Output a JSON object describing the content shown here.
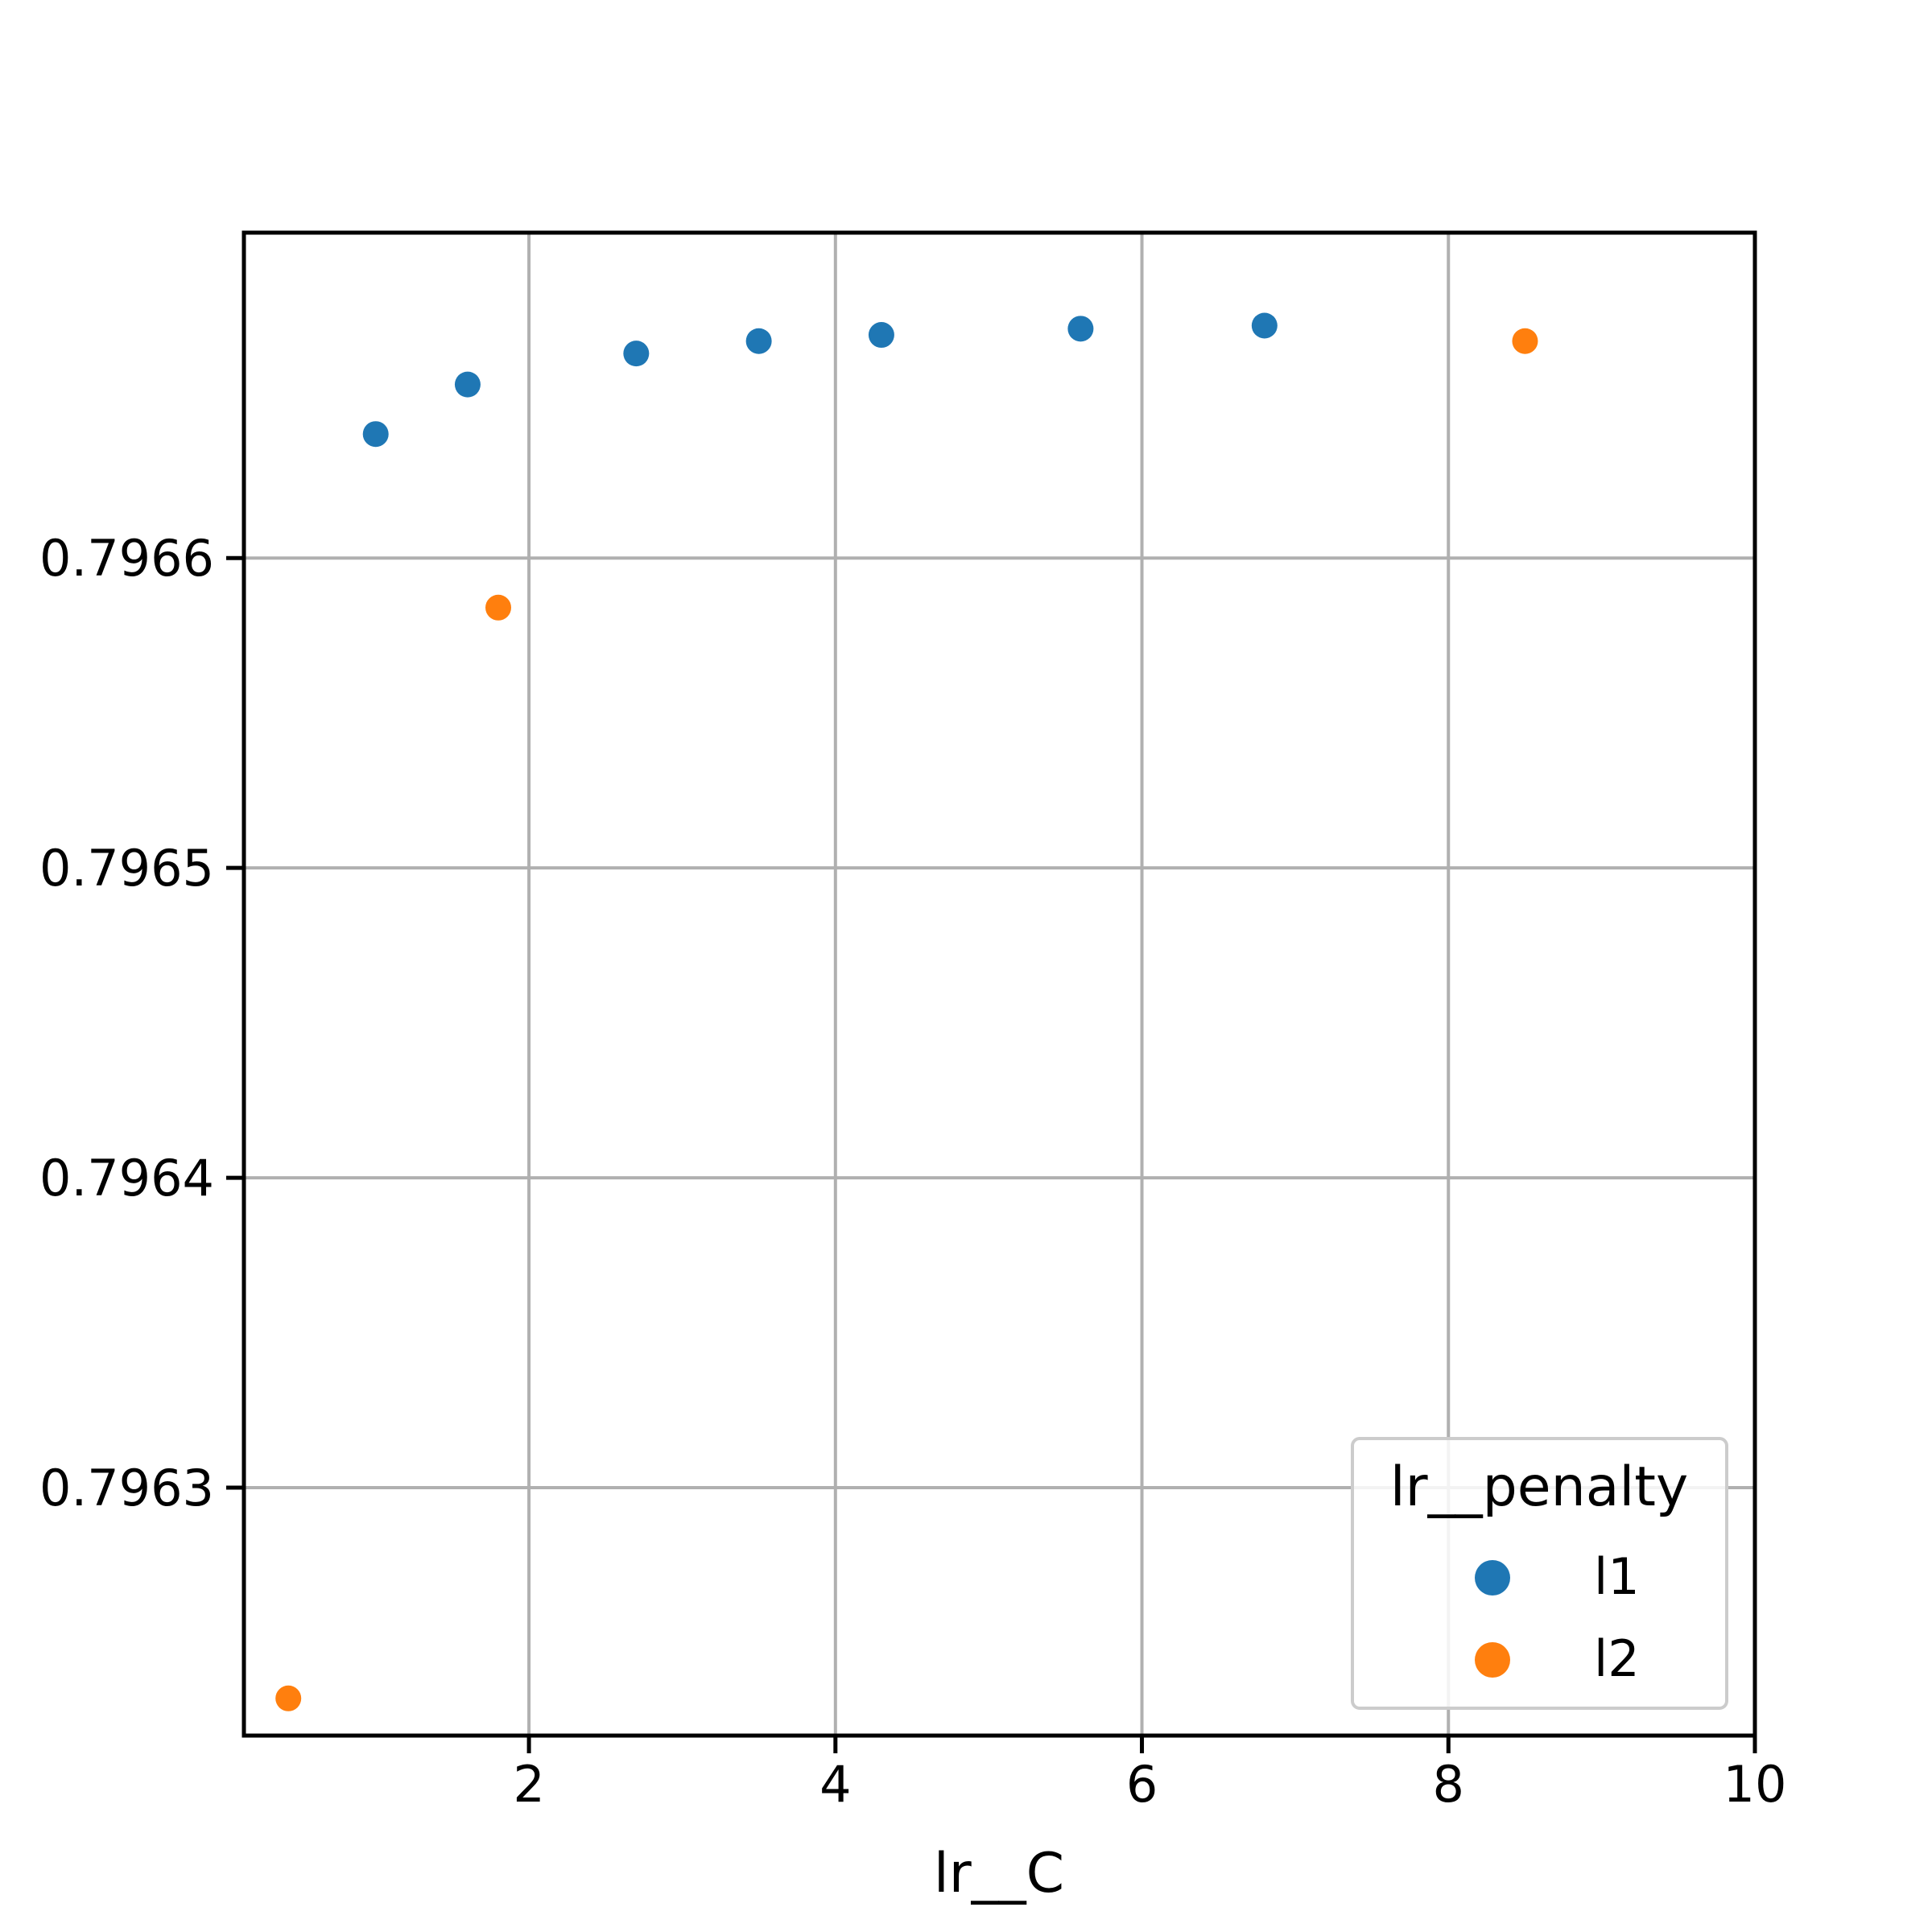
{
  "chart_data": {
    "type": "scatter",
    "title": "",
    "xlabel": "lr__C",
    "ylabel": "",
    "xlim": [
      0.14,
      10.0
    ],
    "ylim": [
      0.79622,
      0.796705
    ],
    "x_ticks": [
      2,
      4,
      6,
      8,
      10
    ],
    "y_ticks": [
      0.7963,
      0.7964,
      0.7965,
      0.7966
    ],
    "x_tick_labels": [
      "2",
      "4",
      "6",
      "8",
      "10"
    ],
    "y_tick_labels": [
      "0.7963",
      "0.7964",
      "0.7965",
      "0.7966"
    ],
    "grid": true,
    "legend": {
      "title": "lr__penalty",
      "placement": "lower-right"
    },
    "series": [
      {
        "name": "l1",
        "color": "#1f77b4",
        "points": [
          {
            "x": 1.0,
            "y": 0.79664
          },
          {
            "x": 1.6,
            "y": 0.796656
          },
          {
            "x": 2.7,
            "y": 0.796666
          },
          {
            "x": 3.5,
            "y": 0.79667
          },
          {
            "x": 4.3,
            "y": 0.796672
          },
          {
            "x": 5.6,
            "y": 0.796674
          },
          {
            "x": 6.8,
            "y": 0.796675
          }
        ]
      },
      {
        "name": "l2",
        "color": "#ff7f0e",
        "points": [
          {
            "x": 0.43,
            "y": 0.796232
          },
          {
            "x": 1.8,
            "y": 0.796584
          },
          {
            "x": 8.5,
            "y": 0.79667
          }
        ]
      }
    ]
  }
}
